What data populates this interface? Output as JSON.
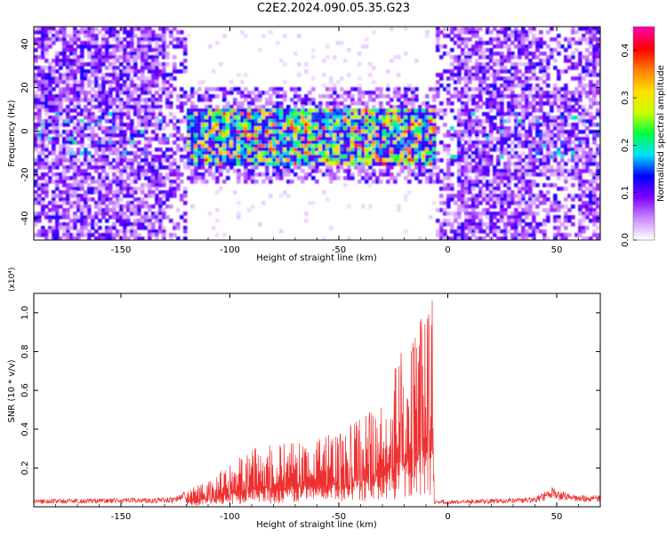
{
  "title": "C2E2.2024.090.05.35.G23",
  "chart_data": [
    {
      "type": "heatmap",
      "xlabel": "Height of straight line (km)",
      "ylabel": "Frequency (Hz)",
      "xlim": [
        -190,
        70
      ],
      "ylim": [
        -50,
        48
      ],
      "x_ticks": [
        -150,
        -100,
        -50,
        0,
        50
      ],
      "y_ticks": [
        -40,
        -20,
        0,
        20,
        40
      ],
      "colorbar": {
        "label": "Normalized spectral amplitude",
        "range": [
          0,
          0.45
        ],
        "ticks": [
          0.0,
          0.1,
          0.2,
          0.3,
          0.4
        ],
        "colormap": [
          "#ffffff",
          "#cc88ff",
          "#8000ff",
          "#0000ff",
          "#00e0ff",
          "#00ff40",
          "#c8ff00",
          "#ffe000",
          "#ff8000",
          "#ff0000",
          "#ff00a0"
        ]
      },
      "regions": [
        {
          "x_start": -190,
          "x_end": -120,
          "description": "broadband noise",
          "level": 0.08
        },
        {
          "x_start": -120,
          "x_end": -6,
          "description": "signal band",
          "freq_range": [
            -15,
            12
          ],
          "level": 0.22
        },
        {
          "x_start": -6,
          "x_end": 70,
          "description": "broadband noise",
          "level": 0.08
        }
      ],
      "grid": false
    },
    {
      "type": "line",
      "xlabel": "Height of straight line (km)",
      "ylabel": "SNR (10 * v/v)",
      "y_multiplier": "(x10⁴)",
      "xlim": [
        -190,
        70
      ],
      "ylim": [
        0,
        1.1
      ],
      "x_ticks": [
        -150,
        -100,
        -50,
        0,
        50
      ],
      "y_ticks": [
        0.2,
        0.4,
        0.6,
        0.8,
        1.0
      ],
      "series": [
        {
          "color": "#ee3030",
          "envelope": {
            "x": [
              -190,
              -150,
              -125,
              -120,
              -110,
              -100,
              -90,
              -80,
              -70,
              -60,
              -50,
              -40,
              -30,
              -25,
              -20,
              -15,
              -10,
              -7,
              -6,
              0,
              20,
              40,
              48,
              52,
              60,
              70
            ],
            "y": [
              0.04,
              0.045,
              0.05,
              0.09,
              0.14,
              0.22,
              0.3,
              0.33,
              0.36,
              0.35,
              0.4,
              0.46,
              0.55,
              0.72,
              0.85,
              0.88,
              1.05,
              1.1,
              0.04,
              0.035,
              0.04,
              0.05,
              0.1,
              0.08,
              0.06,
              0.06
            ]
          }
        }
      ],
      "grid": false
    }
  ]
}
